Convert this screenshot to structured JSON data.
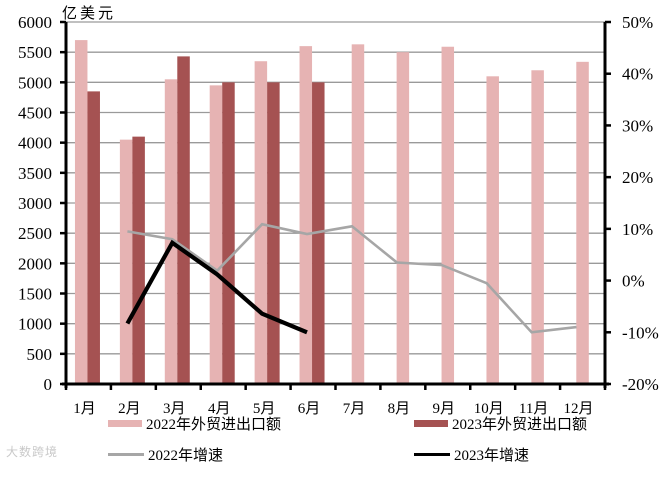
{
  "chart": {
    "unit_label": "亿美元",
    "watermark": "大数跨境"
  },
  "legend": {
    "items": [
      {
        "label": "2022年外贸进出口额",
        "kind": "bar",
        "color": "#e6b3b3"
      },
      {
        "label": "2023年外贸进出口额",
        "kind": "bar",
        "color": "#a55252"
      },
      {
        "label": "2022年增速",
        "kind": "line",
        "color": "#a6a6a6"
      },
      {
        "label": "2023年增速",
        "kind": "line",
        "color": "#000000"
      }
    ]
  },
  "chart_data": {
    "type": "bar",
    "title": "",
    "xlabel": "",
    "ylabel": "亿美元",
    "y2label": "",
    "categories": [
      "1月",
      "2月",
      "3月",
      "4月",
      "5月",
      "6月",
      "7月",
      "8月",
      "9月",
      "10月",
      "11月",
      "12月"
    ],
    "ylim": [
      0,
      6000
    ],
    "yticks": [
      0,
      500,
      1000,
      1500,
      2000,
      2500,
      3000,
      3500,
      4000,
      4500,
      5000,
      5500,
      6000
    ],
    "y2lim": [
      -20,
      50
    ],
    "y2ticks": [
      "-20%",
      "-10%",
      "0%",
      "10%",
      "20%",
      "30%",
      "40%",
      "50%"
    ],
    "grid": true,
    "legend_position": "bottom",
    "series": [
      {
        "name": "2022年外贸进出口额",
        "type": "bar",
        "axis": "left",
        "color": "#e6b3b3",
        "values": [
          5700,
          4050,
          5050,
          4950,
          5350,
          5600,
          5630,
          5500,
          5590,
          5100,
          5200,
          5340
        ]
      },
      {
        "name": "2023年外贸进出口额",
        "type": "bar",
        "axis": "left",
        "color": "#a55252",
        "values": [
          4850,
          4100,
          5430,
          5000,
          5000,
          5000,
          null,
          null,
          null,
          null,
          null,
          null
        ]
      },
      {
        "name": "2022年增速",
        "type": "line",
        "axis": "right",
        "unit": "%",
        "color": "#a6a6a6",
        "values": [
          null,
          9.5,
          8.0,
          1.9,
          10.9,
          9.0,
          10.5,
          3.5,
          3.0,
          -0.5,
          -10.0,
          -9.0
        ]
      },
      {
        "name": "2023年增速",
        "type": "line",
        "axis": "right",
        "unit": "%",
        "color": "#000000",
        "values": [
          null,
          -8.3,
          7.3,
          1.2,
          -6.4,
          -10.0,
          null,
          null,
          null,
          null,
          null,
          null
        ]
      }
    ]
  }
}
